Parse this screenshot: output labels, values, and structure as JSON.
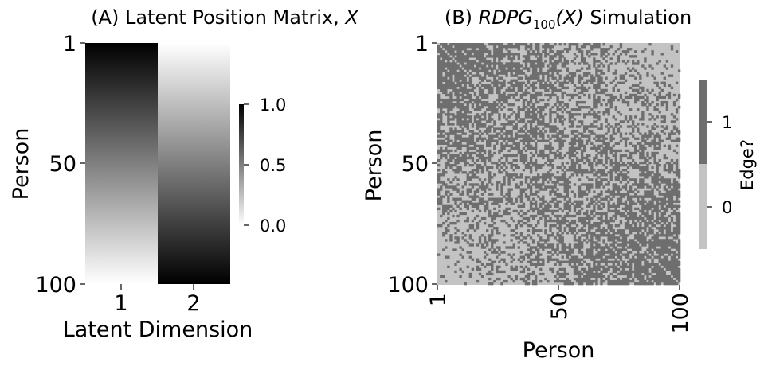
{
  "chart_data": [
    {
      "type": "heatmap",
      "title_prefix": "(A) Latent Position Matrix, ",
      "title_var": "X",
      "xlabel": "Latent Dimension",
      "ylabel": "Person",
      "x_ticks": [
        "1",
        "2"
      ],
      "y_ticks": [
        "1",
        "50",
        "100"
      ],
      "n_rows": 100,
      "columns": [
        {
          "name": "1",
          "start": 1.0,
          "end": 0.0
        },
        {
          "name": "2",
          "start": 0.0,
          "end": 1.0
        }
      ],
      "colorbar": {
        "min": 0.0,
        "max": 1.0,
        "ticks": [
          "1.0",
          "0.5",
          "0.0"
        ],
        "tick_values": [
          1.0,
          0.5,
          0.0
        ]
      },
      "colormap": {
        "low": "#ffffff",
        "high": "#000000"
      }
    },
    {
      "type": "heatmap",
      "title_prefix": "(B) ",
      "title_math_main": "RDPG",
      "title_math_sub": "100",
      "title_math_arg": "(X)",
      "title_suffix": " Simulation",
      "xlabel": "Person",
      "ylabel": "Person",
      "x_ticks": [
        "1",
        "50",
        "100"
      ],
      "y_ticks": [
        "1",
        "50",
        "100"
      ],
      "n_nodes": 100,
      "colorbar": {
        "label": "Edge?",
        "ticks": [
          "1",
          "0"
        ],
        "tick_values": [
          1,
          0
        ]
      },
      "colors": {
        "edge": "#6e6e6e",
        "no_edge": "#c3c3c3"
      }
    }
  ]
}
